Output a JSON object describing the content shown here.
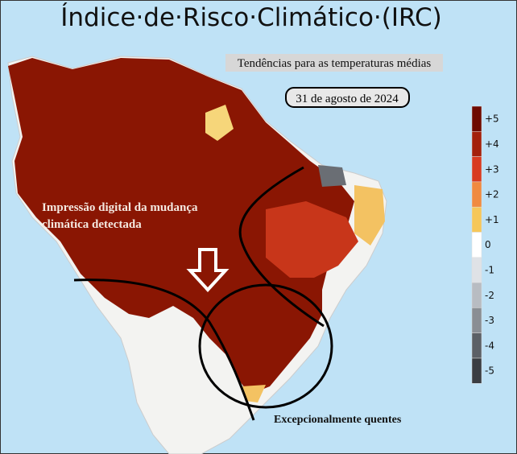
{
  "title": "Índice·de·Risco·Climático·(IRC)",
  "subtitle": "Tendências para as temperaturas médias",
  "date": "31 de agosto de 2024",
  "annotation_lines": [
    "Impressão digital da mudança",
    "climática detectada"
  ],
  "callout": "Excepcionalmente quentes",
  "legend": [
    {
      "label": "+5",
      "color": "#6e0a00"
    },
    {
      "label": "+4",
      "color": "#a3200b"
    },
    {
      "label": "+3",
      "color": "#d83a20"
    },
    {
      "label": "+2",
      "color": "#f08a40"
    },
    {
      "label": "+1",
      "color": "#f6c75a"
    },
    {
      "label": "0",
      "color": "#ffffff"
    },
    {
      "label": "-1",
      "color": "#dfe2e6"
    },
    {
      "label": "-2",
      "color": "#b8bcc2"
    },
    {
      "label": "-3",
      "color": "#8a8e94"
    },
    {
      "label": "-4",
      "color": "#5c6066"
    },
    {
      "label": "-5",
      "color": "#3a3d42"
    }
  ]
}
